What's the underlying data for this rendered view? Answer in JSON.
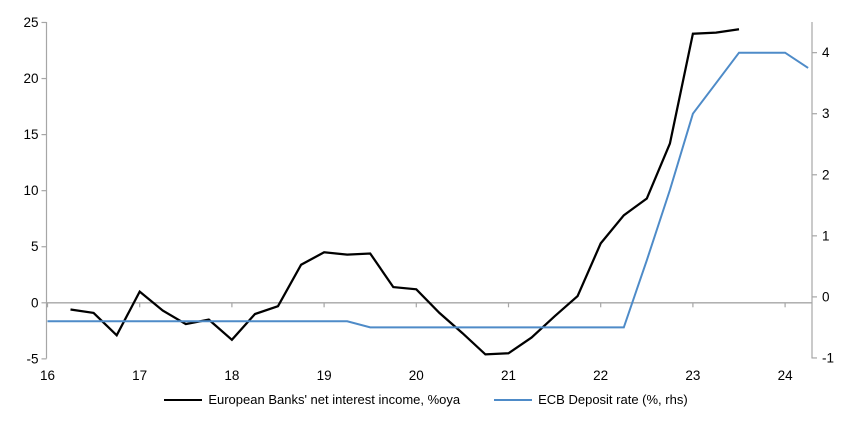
{
  "colors": {
    "background": "#FFFFFF",
    "axis_gray": "#A6A6A6",
    "black_series": "#000000",
    "blue_series": "#4E8BC8",
    "label_text": "#000000"
  },
  "chart_data": {
    "type": "line",
    "title": "",
    "grid": "zero-gridline-only",
    "legend_position": "bottom-center",
    "x_axis": {
      "tick_labels": [
        "16",
        "17",
        "18",
        "19",
        "20",
        "21",
        "22",
        "23",
        "24"
      ],
      "tick_values": [
        16,
        17,
        18,
        19,
        20,
        21,
        22,
        23,
        24
      ],
      "range": [
        16,
        24.3
      ]
    },
    "left_y_axis": {
      "tick_labels": [
        "25",
        "20",
        "15",
        "10",
        "5",
        "0",
        "-5"
      ],
      "tick_values": [
        25,
        20,
        15,
        10,
        5,
        0,
        -5
      ],
      "range": [
        -5,
        25
      ]
    },
    "right_y_axis": {
      "tick_labels": [
        "4",
        "3",
        "2",
        "1",
        "0",
        "-1"
      ],
      "tick_values": [
        4,
        3,
        2,
        1,
        0,
        -1
      ],
      "range": [
        -1,
        4.5
      ]
    },
    "series": [
      {
        "name": "European Banks' net interest income, %oya",
        "color": "#000000",
        "axis": "left",
        "x": [
          16.25,
          16.5,
          16.75,
          17.0,
          17.25,
          17.5,
          17.75,
          18.0,
          18.25,
          18.5,
          18.75,
          19.0,
          19.25,
          19.5,
          19.75,
          20.0,
          20.25,
          20.5,
          20.75,
          21.0,
          21.25,
          21.5,
          21.75,
          22.0,
          22.25,
          22.5,
          22.75,
          23.0,
          23.25,
          23.5
        ],
        "values": [
          -0.6,
          -0.9,
          -2.9,
          1.0,
          -0.7,
          -1.9,
          -1.5,
          -3.3,
          -1.0,
          -0.3,
          3.4,
          4.5,
          4.3,
          4.4,
          1.4,
          1.2,
          -0.9,
          -2.7,
          -4.6,
          -4.5,
          -3.1,
          -1.2,
          0.6,
          5.3,
          7.8,
          9.3,
          14.2,
          24.0,
          24.1,
          24.4
        ]
      },
      {
        "name": "ECB Deposit rate (%, rhs)",
        "color": "#4E8BC8",
        "axis": "right",
        "x": [
          16.0,
          16.25,
          16.5,
          16.75,
          17.0,
          17.25,
          17.5,
          17.75,
          18.0,
          18.25,
          18.5,
          18.75,
          19.0,
          19.25,
          19.5,
          19.75,
          20.0,
          20.25,
          20.5,
          20.75,
          21.0,
          21.25,
          21.5,
          21.75,
          22.0,
          22.25,
          22.5,
          22.75,
          23.0,
          23.25,
          23.5,
          23.75,
          24.0,
          24.25
        ],
        "values": [
          -0.4,
          -0.4,
          -0.4,
          -0.4,
          -0.4,
          -0.4,
          -0.4,
          -0.4,
          -0.4,
          -0.4,
          -0.4,
          -0.4,
          -0.4,
          -0.4,
          -0.5,
          -0.5,
          -0.5,
          -0.5,
          -0.5,
          -0.5,
          -0.5,
          -0.5,
          -0.5,
          -0.5,
          -0.5,
          -0.5,
          0.6,
          1.75,
          3.0,
          3.5,
          4.0,
          4.0,
          4.0,
          3.75
        ]
      }
    ]
  }
}
